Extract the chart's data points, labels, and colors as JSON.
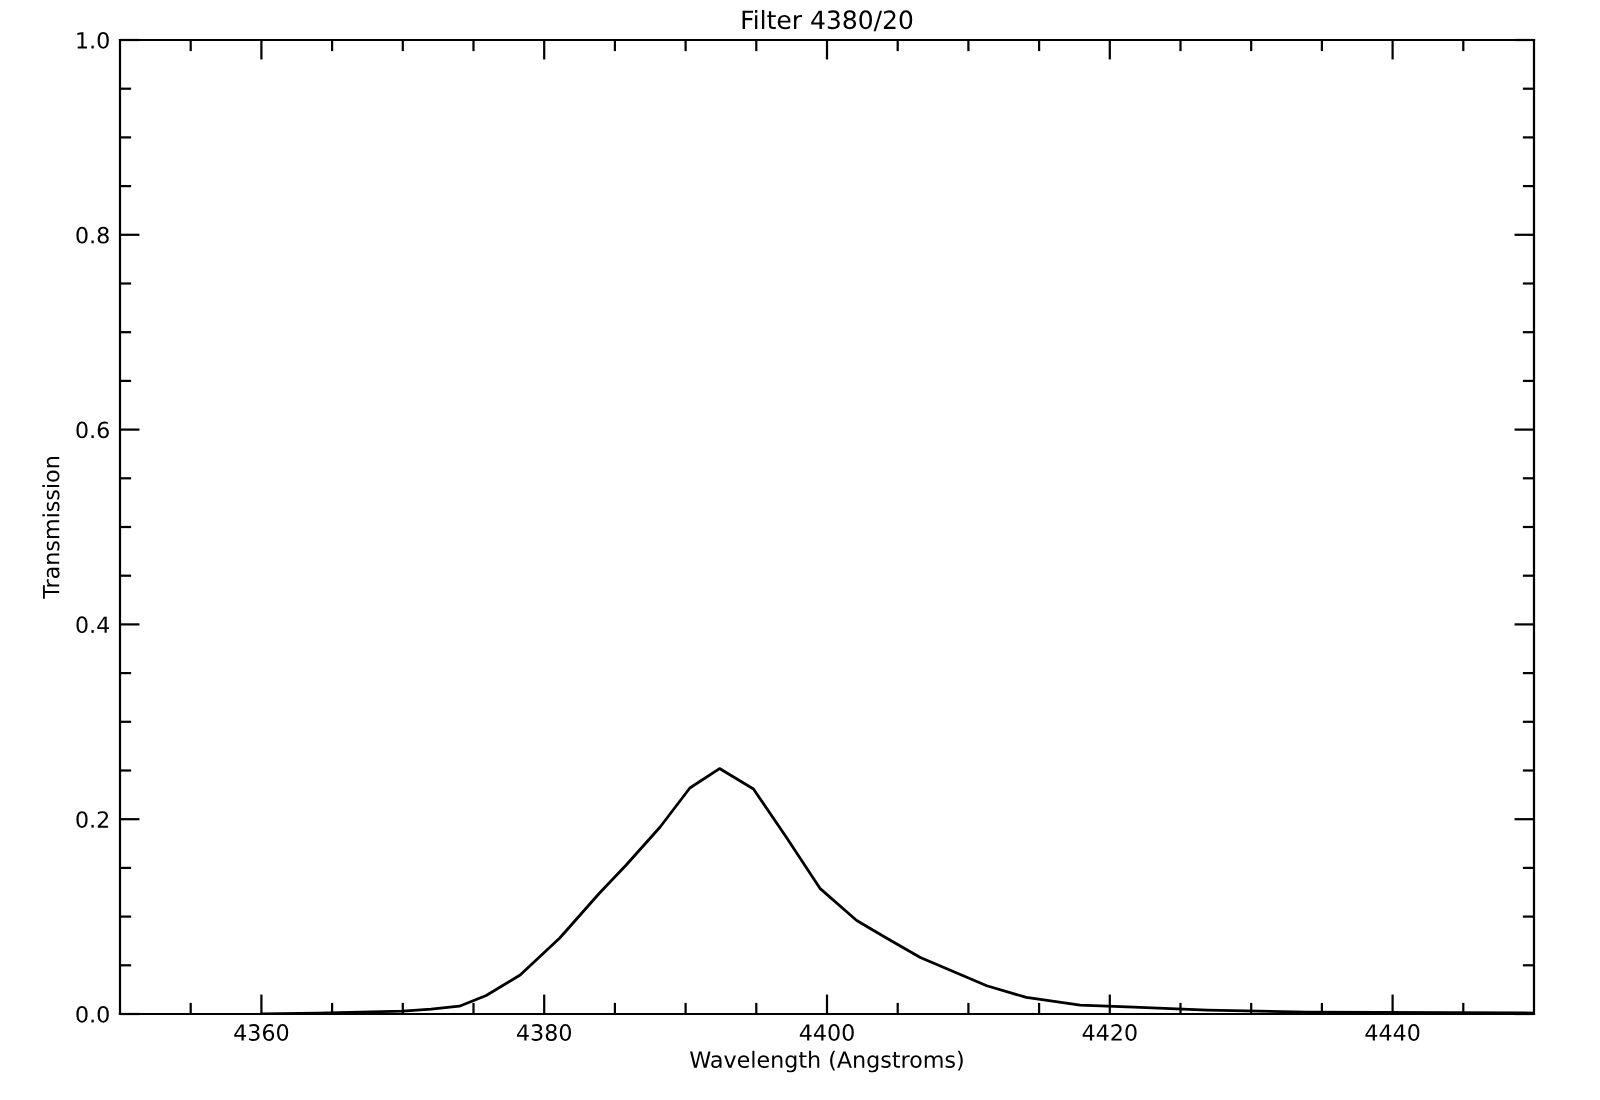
{
  "chart_data": {
    "type": "line",
    "title": "Filter 4380/20",
    "xlabel": "Wavelength (Angstroms)",
    "ylabel": "Transmission",
    "xlim": [
      4350,
      4450
    ],
    "xticks": [
      {
        "value": 4355,
        "label": null
      },
      4360,
      {
        "value": 4365,
        "label": null
      },
      {
        "value": 4370,
        "label": null
      },
      {
        "value": 4375,
        "label": null
      },
      4380,
      {
        "value": 4385,
        "label": null
      },
      {
        "value": 4390,
        "label": null
      },
      {
        "value": 4395,
        "label": null
      },
      4400,
      {
        "value": 4405,
        "label": null
      },
      {
        "value": 4410,
        "label": null
      },
      {
        "value": 4415,
        "label": null
      },
      4420,
      {
        "value": 4425,
        "label": null
      },
      {
        "value": 4430,
        "label": null
      },
      {
        "value": 4435,
        "label": null
      },
      4440,
      {
        "value": 4445,
        "label": null
      }
    ],
    "ylim": [
      0,
      1
    ],
    "yticks": [
      {
        "value": 0,
        "label": "0.0"
      },
      {
        "value": 0.05,
        "label": null
      },
      {
        "value": 0.1,
        "label": null
      },
      {
        "value": 0.15,
        "label": null
      },
      0.2,
      {
        "value": 0.25,
        "label": null
      },
      {
        "value": 0.3,
        "label": null
      },
      {
        "value": 0.35,
        "label": null
      },
      0.4,
      {
        "value": 0.45,
        "label": null
      },
      {
        "value": 0.5,
        "label": null
      },
      {
        "value": 0.55,
        "label": null
      },
      0.6,
      {
        "value": 0.65,
        "label": null
      },
      {
        "value": 0.7,
        "label": null
      },
      {
        "value": 0.75,
        "label": null
      },
      0.8,
      {
        "value": 0.85,
        "label": null
      },
      {
        "value": 0.9,
        "label": null
      },
      {
        "value": 0.95,
        "label": null
      },
      {
        "value": 1,
        "label": "1.0"
      }
    ],
    "grid": false,
    "legend": false,
    "marker": "none",
    "line_style": "solid",
    "x": [
      4360,
      4364,
      4367,
      4370,
      4372,
      4374,
      4375.9,
      4378.3,
      4381.1,
      4383.9,
      4385.8,
      4388.2,
      4390.3,
      4392.4,
      4394.8,
      4397.1,
      4399.5,
      4402.1,
      4404.2,
      4406.6,
      4411.3,
      4414.1,
      4417.9,
      4421.7,
      4426.9,
      4433.9,
      4450
    ],
    "series": [
      {
        "color": "#000000",
        "values": [
          0.0,
          0.001,
          0.002,
          0.003,
          0.005,
          0.008,
          0.019,
          0.04,
          0.078,
          0.124,
          0.153,
          0.192,
          0.232,
          0.252,
          0.231,
          0.182,
          0.129,
          0.096,
          0.078,
          0.058,
          0.029,
          0.017,
          0.009,
          0.007,
          0.004,
          0.002,
          0.001
        ]
      }
    ]
  }
}
